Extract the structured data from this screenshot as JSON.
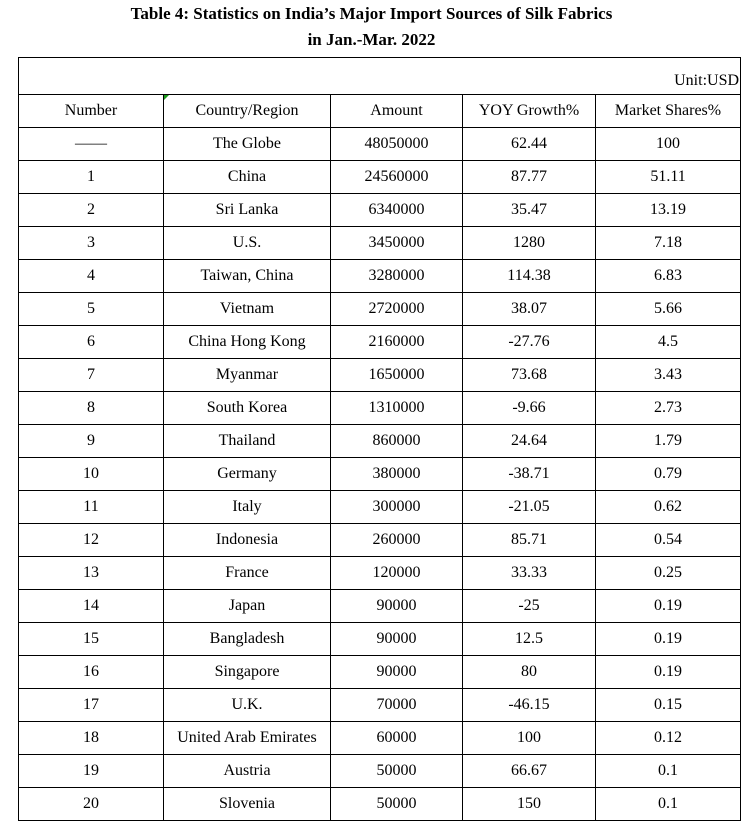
{
  "title_line1": "Table 4: Statistics on India’s Major Import Sources of Silk Fabrics",
  "title_line2": "in Jan.-Mar. 2022",
  "unit": "Unit:USD",
  "headers": [
    "Number",
    "Country/Region",
    "Amount",
    "YOY Growth%",
    "Market Shares%"
  ],
  "rows": [
    [
      "——",
      "The Globe",
      "48050000",
      "62.44",
      "100"
    ],
    [
      "1",
      "China",
      "24560000",
      "87.77",
      "51.11"
    ],
    [
      "2",
      "Sri Lanka",
      "6340000",
      "35.47",
      "13.19"
    ],
    [
      "3",
      "U.S.",
      "3450000",
      "1280",
      "7.18"
    ],
    [
      "4",
      "Taiwan, China",
      "3280000",
      "114.38",
      "6.83"
    ],
    [
      "5",
      "Vietnam",
      "2720000",
      "38.07",
      "5.66"
    ],
    [
      "6",
      "China Hong Kong",
      "2160000",
      "-27.76",
      "4.5"
    ],
    [
      "7",
      "Myanmar",
      "1650000",
      "73.68",
      "3.43"
    ],
    [
      "8",
      "South Korea",
      "1310000",
      "-9.66",
      "2.73"
    ],
    [
      "9",
      "Thailand",
      "860000",
      "24.64",
      "1.79"
    ],
    [
      "10",
      "Germany",
      "380000",
      "-38.71",
      "0.79"
    ],
    [
      "11",
      "Italy",
      "300000",
      "-21.05",
      "0.62"
    ],
    [
      "12",
      "Indonesia",
      "260000",
      "85.71",
      "0.54"
    ],
    [
      "13",
      "France",
      "120000",
      "33.33",
      "0.25"
    ],
    [
      "14",
      "Japan",
      "90000",
      "-25",
      "0.19"
    ],
    [
      "15",
      "Bangladesh",
      "90000",
      "12.5",
      "0.19"
    ],
    [
      "16",
      "Singapore",
      "90000",
      "80",
      "0.19"
    ],
    [
      "17",
      "U.K.",
      "70000",
      "-46.15",
      "0.15"
    ],
    [
      "18",
      "United Arab Emirates",
      "60000",
      "100",
      "0.12"
    ],
    [
      "19",
      "Austria",
      "50000",
      "66.67",
      "0.1"
    ],
    [
      "20",
      "Slovenia",
      "50000",
      "150",
      "0.1"
    ]
  ]
}
